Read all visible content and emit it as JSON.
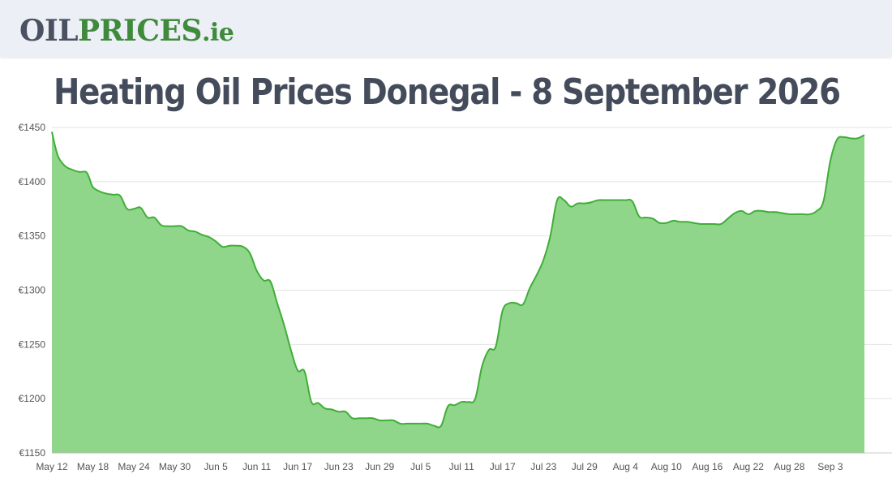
{
  "header": {
    "logo_part1": "OIL",
    "logo_part2": "PRICES",
    "logo_part3": ".ie"
  },
  "page_title": "Heating Oil Prices Donegal - 8 September 2026",
  "colors": {
    "line": "#3fae37",
    "fill": "#8fd68a",
    "grid": "#e2e2e2",
    "header_bg": "#eceff5"
  },
  "chart_data": {
    "type": "area",
    "title": "",
    "xlabel": "",
    "ylabel": "",
    "ylim": [
      1150,
      1450
    ],
    "grid": true,
    "legend": "none",
    "y_tick_labels": [
      "€1450",
      "€1400",
      "€1350",
      "€1300",
      "€1250",
      "€1200",
      "€1150"
    ],
    "y_ticks": [
      1450,
      1400,
      1350,
      1300,
      1250,
      1200,
      1150
    ],
    "x_tick_labels": [
      "May 12",
      "May 18",
      "May 24",
      "May 30",
      "Jun 5",
      "Jun 11",
      "Jun 17",
      "Jun 23",
      "Jun 29",
      "Jul 5",
      "Jul 11",
      "Jul 17",
      "Jul 23",
      "Jul 29",
      "Aug 4",
      "Aug 10",
      "Aug 16",
      "Aug 22",
      "Aug 28",
      "Sep 3"
    ],
    "x_tick_days": [
      0,
      6,
      12,
      18,
      24,
      30,
      36,
      42,
      48,
      54,
      60,
      66,
      72,
      78,
      84,
      90,
      96,
      102,
      108,
      114
    ],
    "x_range_days": [
      0,
      119
    ],
    "series": [
      {
        "points": [
          [
            0,
            1446
          ],
          [
            0.5,
            1432
          ],
          [
            1,
            1422
          ],
          [
            2,
            1414
          ],
          [
            3,
            1411
          ],
          [
            4,
            1409
          ],
          [
            5,
            1409
          ],
          [
            5.5,
            1403
          ],
          [
            6,
            1395
          ],
          [
            7,
            1391
          ],
          [
            8,
            1389
          ],
          [
            9,
            1388
          ],
          [
            10,
            1387
          ],
          [
            11,
            1375
          ],
          [
            12,
            1375
          ],
          [
            13,
            1376
          ],
          [
            14,
            1367
          ],
          [
            15,
            1367
          ],
          [
            16,
            1360
          ],
          [
            17,
            1359
          ],
          [
            18,
            1359
          ],
          [
            19,
            1359
          ],
          [
            20,
            1355
          ],
          [
            21,
            1354
          ],
          [
            22,
            1351
          ],
          [
            23,
            1349
          ],
          [
            24,
            1345
          ],
          [
            25,
            1340
          ],
          [
            26,
            1341
          ],
          [
            27,
            1341
          ],
          [
            28,
            1340
          ],
          [
            29,
            1334
          ],
          [
            30,
            1318
          ],
          [
            31,
            1309
          ],
          [
            32,
            1308
          ],
          [
            33,
            1288
          ],
          [
            34,
            1268
          ],
          [
            35,
            1245
          ],
          [
            36,
            1226
          ],
          [
            37,
            1225
          ],
          [
            38,
            1197
          ],
          [
            39,
            1196
          ],
          [
            40,
            1191
          ],
          [
            41,
            1190
          ],
          [
            42,
            1188
          ],
          [
            43,
            1188
          ],
          [
            44,
            1182
          ],
          [
            45,
            1182
          ],
          [
            46,
            1182
          ],
          [
            47,
            1182
          ],
          [
            48,
            1180
          ],
          [
            49,
            1180
          ],
          [
            50,
            1180
          ],
          [
            51,
            1177
          ],
          [
            52,
            1177
          ],
          [
            53,
            1177
          ],
          [
            54,
            1177
          ],
          [
            55,
            1177
          ],
          [
            56,
            1175
          ],
          [
            57,
            1175
          ],
          [
            58,
            1193
          ],
          [
            59,
            1194
          ],
          [
            60,
            1197
          ],
          [
            61,
            1197
          ],
          [
            62,
            1200
          ],
          [
            63,
            1230
          ],
          [
            64,
            1245
          ],
          [
            65,
            1248
          ],
          [
            66,
            1281
          ],
          [
            67,
            1288
          ],
          [
            68,
            1288
          ],
          [
            69,
            1287
          ],
          [
            70,
            1302
          ],
          [
            71,
            1314
          ],
          [
            72,
            1328
          ],
          [
            73,
            1350
          ],
          [
            74,
            1383
          ],
          [
            75,
            1383
          ],
          [
            76,
            1377
          ],
          [
            77,
            1380
          ],
          [
            78,
            1380
          ],
          [
            79,
            1381
          ],
          [
            80,
            1383
          ],
          [
            81,
            1383
          ],
          [
            82,
            1383
          ],
          [
            83,
            1383
          ],
          [
            84,
            1383
          ],
          [
            85,
            1382
          ],
          [
            86,
            1368
          ],
          [
            87,
            1367
          ],
          [
            88,
            1366
          ],
          [
            89,
            1362
          ],
          [
            90,
            1362
          ],
          [
            91,
            1364
          ],
          [
            92,
            1363
          ],
          [
            93,
            1363
          ],
          [
            94,
            1362
          ],
          [
            95,
            1361
          ],
          [
            96,
            1361
          ],
          [
            97,
            1361
          ],
          [
            98,
            1361
          ],
          [
            99,
            1366
          ],
          [
            100,
            1371
          ],
          [
            101,
            1373
          ],
          [
            102,
            1370
          ],
          [
            103,
            1373
          ],
          [
            104,
            1373
          ],
          [
            105,
            1372
          ],
          [
            106,
            1372
          ],
          [
            107,
            1371
          ],
          [
            108,
            1370
          ],
          [
            109,
            1370
          ],
          [
            110,
            1370
          ],
          [
            111,
            1370
          ],
          [
            112,
            1373
          ],
          [
            113,
            1382
          ],
          [
            114,
            1419
          ],
          [
            115,
            1439
          ],
          [
            116,
            1441
          ],
          [
            117,
            1440
          ],
          [
            118,
            1440
          ],
          [
            119,
            1443
          ]
        ]
      }
    ]
  }
}
